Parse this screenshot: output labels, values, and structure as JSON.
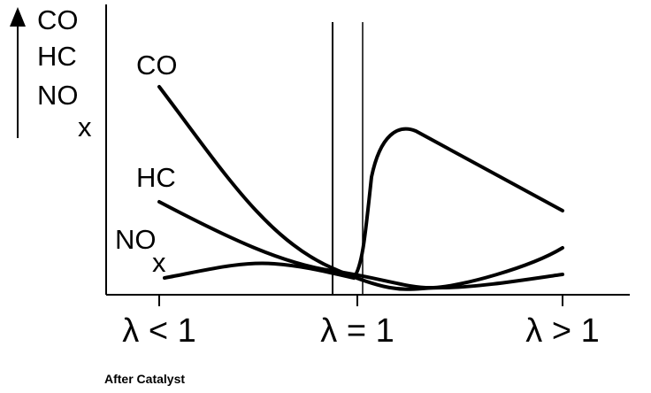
{
  "axis_label": {
    "lines": [
      "CO",
      "HC",
      "NO"
    ],
    "subscript": "x"
  },
  "curves": [
    {
      "label": "CO"
    },
    {
      "label": "HC"
    },
    {
      "label": "NO",
      "subscript": "x"
    }
  ],
  "x_labels": [
    "λ < 1",
    "λ = 1",
    "λ > 1"
  ],
  "caption": "After Catalyst"
}
